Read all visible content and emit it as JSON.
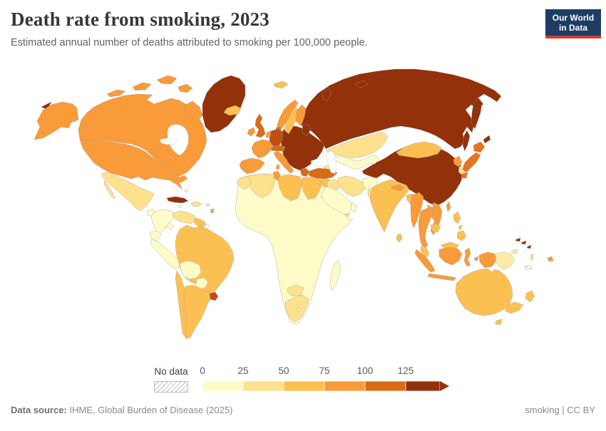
{
  "header": {
    "title": "Death rate from smoking, 2023",
    "subtitle": "Estimated annual number of deaths attributed to smoking per 100,000 people."
  },
  "logo": {
    "line1": "Our World",
    "line2": "in Data"
  },
  "legend": {
    "no_data_label": "No data",
    "ticks": [
      "0",
      "25",
      "50",
      "75",
      "100",
      "125"
    ],
    "colors": [
      "#fdfbc8",
      "#fee18d",
      "#fcc052",
      "#f99b38",
      "#d96b16",
      "#93310a"
    ]
  },
  "footer": {
    "source_label": "Data source:",
    "source_value": " IHME, Global Burden of Disease (2025)",
    "right": "smoking | CC BY"
  },
  "chart_data": {
    "type": "choropleth",
    "title": "Death rate from smoking, 2023",
    "unit": "deaths per 100,000 people",
    "year": "2023",
    "legend_bins": [
      {
        "range": "0-25",
        "color": "#fdfbc8"
      },
      {
        "range": "25-50",
        "color": "#fee18d"
      },
      {
        "range": "50-75",
        "color": "#fcc052"
      },
      {
        "range": "75-100",
        "color": "#f99b38"
      },
      {
        "range": "100-125",
        "color": "#d96b16"
      },
      {
        "range": "125+",
        "color": "#93310a"
      },
      {
        "range": "No data",
        "color": "no-data"
      }
    ],
    "regions": {
      "canada": {
        "label": "Canada",
        "bin": "75-100",
        "color": "#f99b38"
      },
      "united-states": {
        "label": "United States",
        "bin": "75-100",
        "color": "#f99b38"
      },
      "greenland": {
        "label": "Greenland",
        "bin": "125+",
        "color": "#93310a"
      },
      "iceland": {
        "label": "Iceland",
        "bin": "50-75",
        "color": "#fcc052"
      },
      "mexico": {
        "label": "Mexico",
        "bin": "25-50",
        "color": "#fee18d"
      },
      "central-america": {
        "label": "Central America",
        "bin": "0-25",
        "color": "#fdfbc8"
      },
      "cuba": {
        "label": "Cuba",
        "bin": "125+",
        "color": "#93310a"
      },
      "hispaniola": {
        "label": "Hispaniola",
        "bin": "25-50",
        "color": "#fee18d"
      },
      "jamaica": {
        "label": "Jamaica",
        "bin": "0-25",
        "color": "#fdfbc8"
      },
      "puerto-rico": {
        "label": "Puerto Rico",
        "bin": "25-50",
        "color": "#fee18d"
      },
      "bahamas": {
        "label": "Bahamas",
        "bin": "0-25",
        "color": "#fdfbc8"
      },
      "lesser-antilles": {
        "label": "Lesser Antilles",
        "bin": "75-100",
        "color": "#f99b38"
      },
      "colombia": {
        "label": "Colombia",
        "bin": "0-25",
        "color": "#fdfbc8"
      },
      "venezuela": {
        "label": "Venezuela",
        "bin": "25-50",
        "color": "#fee18d"
      },
      "guyana": {
        "label": "Guyana",
        "bin": "50-75",
        "color": "#fcc052"
      },
      "french-guiana": {
        "label": "French Guiana",
        "bin": "No data",
        "color": "no-data"
      },
      "brazil": {
        "label": "Brazil",
        "bin": "50-75",
        "color": "#fcc052"
      },
      "ecuador": {
        "label": "Ecuador",
        "bin": "0-25",
        "color": "#fdfbc8"
      },
      "peru": {
        "label": "Peru",
        "bin": "0-25",
        "color": "#fdfbc8"
      },
      "bolivia": {
        "label": "Bolivia",
        "bin": "0-25",
        "color": "#fdfbc8"
      },
      "paraguay": {
        "label": "Paraguay",
        "bin": "0-25",
        "color": "#fdfbc8"
      },
      "chile": {
        "label": "Chile",
        "bin": "50-75",
        "color": "#fcc052"
      },
      "argentina": {
        "label": "Argentina",
        "bin": "50-75",
        "color": "#fcc052"
      },
      "uruguay": {
        "label": "Uruguay",
        "bin": "100-125",
        "color": "#c84a12"
      },
      "united-kingdom": {
        "label": "United Kingdom",
        "bin": "100-125",
        "color": "#d96b16"
      },
      "ireland": {
        "label": "Ireland",
        "bin": "75-100",
        "color": "#f99b38"
      },
      "france": {
        "label": "France",
        "bin": "75-100",
        "color": "#f99b38"
      },
      "spain-portugal": {
        "label": "Spain and Portugal",
        "bin": "75-100",
        "color": "#f99b38"
      },
      "norway": {
        "label": "Norway",
        "bin": "75-100",
        "color": "#f99b38"
      },
      "svalbard": {
        "label": "Svalbard",
        "bin": "50-75",
        "color": "#fcc052"
      },
      "sweden": {
        "label": "Sweden",
        "bin": "50-75",
        "color": "#fcc052"
      },
      "finland": {
        "label": "Finland",
        "bin": "75-100",
        "color": "#f99b38"
      },
      "denmark": {
        "label": "Denmark",
        "bin": "100-125",
        "color": "#d96b16"
      },
      "germany": {
        "label": "Germany",
        "bin": "100-125",
        "color": "#bf4e10"
      },
      "benelux": {
        "label": "Benelux",
        "bin": "75-100",
        "color": "#f99b38"
      },
      "italy": {
        "label": "Italy",
        "bin": "75-100",
        "color": "#f99b38"
      },
      "alpine": {
        "label": "Switzerland and Austria",
        "bin": "100-125",
        "color": "#d96b16"
      },
      "eastern-europe": {
        "label": "Eastern Europe",
        "bin": "125+",
        "color": "#93310a"
      },
      "greece": {
        "label": "Greece",
        "bin": "100-125",
        "color": "#d96b16"
      },
      "russia": {
        "label": "Russia",
        "bin": "125+",
        "color": "#93310a"
      },
      "kazakhstan": {
        "label": "Kazakhstan",
        "bin": "25-50",
        "color": "#fee18d"
      },
      "central-asia": {
        "label": "Central Asia",
        "bin": "0-25",
        "color": "#fdfbc8"
      },
      "caucasus": {
        "label": "Caucasus",
        "bin": "25-50",
        "color": "#fee18d"
      },
      "turkey": {
        "label": "Turkey",
        "bin": "100-125",
        "color": "#d96b16"
      },
      "levant": {
        "label": "Levant",
        "bin": "50-75",
        "color": "#fcc052"
      },
      "iraq": {
        "label": "Iraq",
        "bin": "25-50",
        "color": "#fee18d"
      },
      "iran": {
        "label": "Iran",
        "bin": "25-50",
        "color": "#fee18d"
      },
      "afghanistan": {
        "label": "Afghanistan",
        "bin": "0-25",
        "color": "#fdfbc8"
      },
      "pakistan": {
        "label": "Pakistan",
        "bin": "25-50",
        "color": "#fee18d"
      },
      "saudi-arabia": {
        "label": "Saudi Arabia",
        "bin": "0-25",
        "color": "#fdfbc8"
      },
      "yemen": {
        "label": "Yemen",
        "bin": "25-50",
        "color": "#fee18d"
      },
      "oman": {
        "label": "Oman",
        "bin": "0-25",
        "color": "#fdfbc8"
      },
      "sub-saharan-africa": {
        "label": "Sub-Saharan Africa",
        "bin": "0-25",
        "color": "#fdfbc8"
      },
      "morocco": {
        "label": "Morocco",
        "bin": "25-50",
        "color": "#fee18d"
      },
      "algeria": {
        "label": "Algeria",
        "bin": "25-50",
        "color": "#fee18d"
      },
      "tunisia": {
        "label": "Tunisia",
        "bin": "75-100",
        "color": "#f99b38"
      },
      "libya": {
        "label": "Libya",
        "bin": "50-75",
        "color": "#fcc052"
      },
      "egypt": {
        "label": "Egypt",
        "bin": "50-75",
        "color": "#fcc052"
      },
      "south-africa": {
        "label": "South Africa",
        "bin": "25-50",
        "color": "#fee18d"
      },
      "botswana": {
        "label": "Botswana",
        "bin": "25-50",
        "color": "#fee18d"
      },
      "lesotho": {
        "label": "Lesotho",
        "bin": "0-25",
        "color": "#fdfbc8"
      },
      "madagascar": {
        "label": "Madagascar",
        "bin": "0-25",
        "color": "#fdfbc8"
      },
      "india": {
        "label": "India",
        "bin": "50-75",
        "color": "#fcc052"
      },
      "nepal": {
        "label": "Nepal",
        "bin": "75-100",
        "color": "#f99b38"
      },
      "bangladesh": {
        "label": "Bangladesh",
        "bin": "50-75",
        "color": "#fcc052"
      },
      "sri-lanka": {
        "label": "Sri Lanka",
        "bin": "50-75",
        "color": "#fcc052"
      },
      "myanmar": {
        "label": "Myanmar",
        "bin": "75-100",
        "color": "#f99b38"
      },
      "thailand": {
        "label": "Thailand",
        "bin": "75-100",
        "color": "#f99b38"
      },
      "laos": {
        "label": "Laos",
        "bin": "75-100",
        "color": "#f99b38"
      },
      "vietnam": {
        "label": "Vietnam",
        "bin": "75-100",
        "color": "#f99b38"
      },
      "cambodia": {
        "label": "Cambodia",
        "bin": "50-75",
        "color": "#fcc052"
      },
      "malaysia": {
        "label": "Malaysia",
        "bin": "50-75",
        "color": "#fcc052"
      },
      "indonesia": {
        "label": "Indonesia",
        "bin": "75-100",
        "color": "#f99b38"
      },
      "philippines": {
        "label": "Philippines",
        "bin": "50-75",
        "color": "#fcc052"
      },
      "papua-new-guinea": {
        "label": "Papua New Guinea",
        "bin": "25-50",
        "color": "#fdeca6"
      },
      "china": {
        "label": "China",
        "bin": "125+",
        "color": "#93310a"
      },
      "mongolia": {
        "label": "Mongolia",
        "bin": "50-75",
        "color": "#fcc052"
      },
      "north-korea": {
        "label": "North Korea",
        "bin": "75-100",
        "color": "#f99b38"
      },
      "south-korea": {
        "label": "South Korea",
        "bin": "25-50",
        "color": "#fee18d"
      },
      "japan": {
        "label": "Japan",
        "bin": "100-125",
        "color": "#e8721f"
      },
      "taiwan": {
        "label": "Taiwan",
        "bin": "75-100",
        "color": "#f99b38"
      },
      "australia": {
        "label": "Australia",
        "bin": "50-75",
        "color": "#fcc052"
      },
      "new-zealand": {
        "label": "New Zealand",
        "bin": "50-75",
        "color": "#fcc052"
      },
      "solomon-islands": {
        "label": "Solomon Islands",
        "bin": "125+",
        "color": "#93310a"
      },
      "vanuatu": {
        "label": "Vanuatu",
        "bin": "25-50",
        "color": "#fee18d"
      },
      "fiji": {
        "label": "Fiji",
        "bin": "75-100",
        "color": "#f99b38"
      },
      "new-caledonia": {
        "label": "New Caledonia",
        "bin": "No data",
        "color": "no-data"
      }
    }
  }
}
